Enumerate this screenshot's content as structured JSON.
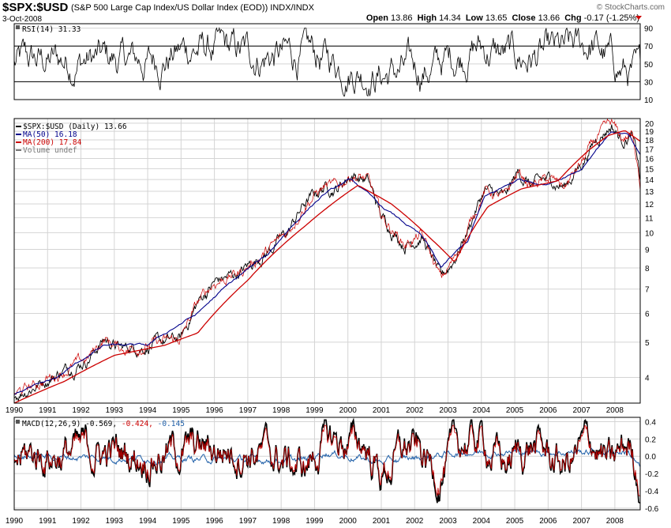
{
  "header": {
    "symbol": "$SPX:$USD",
    "description": "(S&P 500 Large Cap Index/US Dollar Index (EOD)) INDX/INDX",
    "date": "3-Oct-2008",
    "watermark": "© StockCharts.com",
    "open_label": "Open",
    "open": "13.86",
    "high_label": "High",
    "high": "14.34",
    "low_label": "Low",
    "low": "13.65",
    "close_label": "Close",
    "close": "13.66",
    "chg_label": "Chg",
    "chg": "-0.17 (-1.25%)"
  },
  "colors": {
    "price": "#000000",
    "ma50": "#00008b",
    "ma200": "#cc0000",
    "grid": "#d4d4d4",
    "signal": "#cc0000",
    "histogram": "#1f5fa8"
  },
  "chart_data": [
    {
      "type": "line",
      "title": "RSI(14) 31.33",
      "legend": [
        "RSI(14) 31.33"
      ],
      "y_ticks": [
        10,
        30,
        50,
        70,
        90
      ],
      "ylim": [
        10,
        95
      ],
      "reference_lines": [
        30,
        70
      ],
      "x_range": [
        1990,
        2008.76
      ],
      "series": [
        {
          "name": "RSI(14)",
          "x": [
            1990,
            1992,
            1994,
            1995.3,
            1997,
            1999,
            2001,
            2002.5,
            2003.8,
            2005,
            2006.5,
            2007.3,
            2008,
            2008.76
          ],
          "values": [
            50,
            55,
            52,
            68,
            60,
            58,
            38,
            45,
            70,
            55,
            60,
            72,
            48,
            31.33
          ]
        }
      ]
    },
    {
      "type": "line",
      "legend": [
        "$SPX:$USD (Daily) 13.66",
        "MA(50) 16.18",
        "MA(200) 17.84",
        "Volume undef"
      ],
      "y_ticks": [
        4,
        5,
        6,
        7,
        8,
        9,
        10,
        11,
        12,
        13,
        14,
        15,
        16,
        17,
        18,
        19,
        20
      ],
      "ylim": [
        3.4,
        20.6
      ],
      "log_scale": true,
      "grid": true,
      "x_ticks": [
        "1990",
        "1991",
        "1992",
        "1993",
        "1994",
        "1995",
        "1996",
        "1997",
        "1998",
        "1999",
        "2000",
        "2001",
        "2002",
        "2003",
        "2004",
        "2005",
        "2006",
        "2007",
        "2008"
      ],
      "x_range": [
        1990,
        2008.76
      ],
      "series": [
        {
          "name": "$SPX:$USD (Daily) 13.66",
          "x": [
            1990,
            1990.6,
            1991.3,
            1992.2,
            1992.7,
            1993.2,
            1994,
            1994.5,
            1995,
            1995.5,
            1996,
            1996.8,
            1997.6,
            1998.2,
            1998.7,
            1999.3,
            1999.7,
            2000.1,
            2000.6,
            2001,
            2001.7,
            2002.2,
            2002.8,
            2003.2,
            2003.6,
            2004.1,
            2004.7,
            2005.1,
            2005.5,
            2006,
            2006.5,
            2007,
            2007.5,
            2007.9,
            2008.2,
            2008.5,
            2008.7,
            2008.76
          ],
          "values": [
            3.6,
            3.8,
            4.1,
            4.5,
            5.1,
            4.8,
            4.9,
            5.0,
            5.1,
            6.4,
            7.3,
            7.8,
            8.9,
            10.0,
            12.0,
            13.4,
            13.3,
            14.5,
            13.9,
            11.0,
            9.3,
            9.8,
            7.4,
            8.5,
            10.2,
            13.1,
            12.4,
            14.6,
            13.5,
            14.0,
            13.4,
            15.5,
            18.4,
            19.8,
            18.0,
            18.6,
            15.5,
            13.66
          ]
        },
        {
          "name": "MA(50) 16.18",
          "x": [
            1990,
            1991.3,
            1992.7,
            1994,
            1995.5,
            1997.6,
            1999.3,
            2000.1,
            2001,
            2002.2,
            2002.8,
            2003.6,
            2004.1,
            2005.1,
            2006,
            2007,
            2007.9,
            2008.4,
            2008.76
          ],
          "values": [
            3.6,
            4.0,
            4.9,
            4.9,
            6.0,
            8.7,
            12.8,
            14.0,
            11.8,
            9.8,
            8.0,
            9.5,
            12.5,
            14.0,
            13.6,
            15.0,
            19.0,
            18.6,
            16.18
          ]
        },
        {
          "name": "MA(200) 17.84",
          "x": [
            1990,
            1991.5,
            1993,
            1994.5,
            1995.5,
            1997,
            1998.7,
            2000.3,
            2001.3,
            2002.5,
            2003.2,
            2004.2,
            2005.2,
            2006.3,
            2007.2,
            2007.8,
            2008.3,
            2008.76
          ],
          "values": [
            3.4,
            3.9,
            4.6,
            4.9,
            5.3,
            7.4,
            10.4,
            13.5,
            12.0,
            9.6,
            8.3,
            11.8,
            13.2,
            13.9,
            16.8,
            18.5,
            19.1,
            17.84
          ]
        }
      ]
    },
    {
      "type": "line",
      "title": "MACD(12,26,9) -0.569, -0.424, -0.145",
      "legend_label": "MACD(12,26,9)",
      "legend_values": {
        "macd": "-0.569,",
        "signal": "-0.424,",
        "histogram": "-0.145"
      },
      "y_ticks": [
        "0.4",
        "0.2",
        "0.0",
        "-0.2",
        "-0.4",
        "-0.6"
      ],
      "ylim": [
        -0.62,
        0.45
      ],
      "x_ticks": [
        "1990",
        "1991",
        "1992",
        "1993",
        "1994",
        "1995",
        "1996",
        "1997",
        "1998",
        "1999",
        "2000",
        "2001",
        "2002",
        "2003",
        "2004",
        "2005",
        "2006",
        "2007",
        "2008"
      ],
      "x_range": [
        1990,
        2008.76
      ],
      "series": [
        {
          "name": "MACD",
          "x": [
            1990,
            1992,
            1994,
            1995.5,
            1997,
            1998.7,
            1999.3,
            2000.5,
            2001,
            2001.8,
            2002.7,
            2003.5,
            2004,
            2004.7,
            2005.5,
            2006.5,
            2007.3,
            2007.9,
            2008.4,
            2008.76
          ],
          "values": [
            0.0,
            0.1,
            0.05,
            0.15,
            0.2,
            -0.3,
            0.35,
            0.3,
            -0.45,
            0.25,
            -0.4,
            0.35,
            0.38,
            -0.2,
            0.3,
            -0.25,
            0.38,
            -0.3,
            0.3,
            -0.569
          ]
        },
        {
          "name": "Signal",
          "x": [
            1990,
            1992,
            1994,
            1995.5,
            1997,
            1998.7,
            1999.3,
            2000.5,
            2001,
            2001.8,
            2002.7,
            2003.5,
            2004,
            2004.7,
            2005.5,
            2006.5,
            2007.3,
            2007.9,
            2008.4,
            2008.76
          ],
          "values": [
            0.0,
            0.08,
            0.04,
            0.12,
            0.17,
            -0.25,
            0.3,
            0.26,
            -0.38,
            0.2,
            -0.33,
            0.3,
            0.33,
            -0.16,
            0.25,
            -0.2,
            0.33,
            -0.24,
            0.24,
            -0.424
          ]
        },
        {
          "name": "Histogram",
          "x": [
            1990,
            1998.7,
            1999.3,
            2001,
            2003.5,
            2005.5,
            2007.3,
            2008.4,
            2008.76
          ],
          "values": [
            0.0,
            -0.05,
            0.05,
            -0.07,
            0.05,
            0.05,
            0.05,
            0.06,
            -0.145
          ]
        }
      ]
    }
  ]
}
